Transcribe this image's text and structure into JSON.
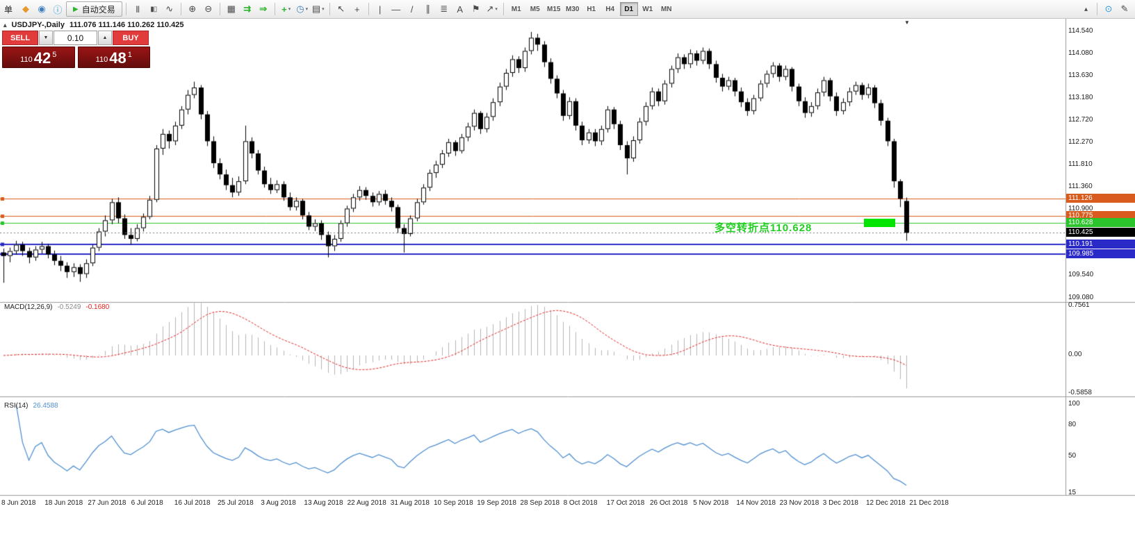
{
  "app": {
    "colors": {
      "buy_sell_red": "#e13b3b",
      "price_box_red": "#9a1515",
      "line_orange": "#d95c1e",
      "line_green": "#2cc42c",
      "line_blue": "#2a2ac8",
      "current_black": "#000000",
      "macd_histogram": "#b4b4b4",
      "macd_signal": "#e82020",
      "rsi_line": "#4f8fd0",
      "annotation_green": "#1fce1f",
      "highlight_green": "#00e400"
    }
  },
  "toolbar": {
    "menu_label": "单",
    "autotrading_label": "自动交易",
    "timeframes": [
      "M1",
      "M5",
      "M15",
      "M30",
      "H1",
      "H4",
      "D1",
      "W1",
      "MN"
    ],
    "active_timeframe": "D1",
    "icons": {
      "new_order": "◆",
      "market_watch": "◉",
      "info": "ⓘ",
      "play": "▶",
      "bars": "|||",
      "candles": "▮▯",
      "line_chart": "∿",
      "zoom_in": "⊕",
      "zoom_out": "⊖",
      "tile_windows": "▦",
      "auto_scroll": "⇉",
      "chart_shift": "⇒",
      "indicators": "+",
      "periods": "◷",
      "templates": "▤",
      "dropdown": "▾",
      "cursor": "↖",
      "crosshair": "+",
      "vertical_line": "|",
      "horizontal_line": "—",
      "trendline": "/",
      "channel": "∥",
      "fibonacci": "≣",
      "text": "A",
      "label": "⚑",
      "arrows": "↗",
      "collapse": "▴",
      "community": "⊙",
      "edit": "✎"
    }
  },
  "chart": {
    "collapse_arrow": "▴",
    "shift_marker": "▼",
    "symbol_title": "USDJPY-,Daily",
    "ohlc_text": "111.076 111.146 110.262 110.425",
    "trade_panel": {
      "sell_label": "SELL",
      "buy_label": "BUY",
      "volume": "0.10",
      "spin_down_icon": "▼",
      "spin_up_icon": "▲",
      "sell_price_small": "110",
      "sell_price_big": "42",
      "sell_price_sup": "5",
      "buy_price_small": "110",
      "buy_price_big": "48",
      "buy_price_sup": "1"
    },
    "annotation": {
      "text": "多空转折点110.628"
    }
  },
  "macd_panel": {
    "label": "MACD(12,26,9)",
    "value_main": "-0.5249",
    "value_signal": "-0.1680"
  },
  "rsi_panel": {
    "label": "RSI(14)",
    "value": "26.4588"
  },
  "chart_data": {
    "type": "candlestick",
    "symbol": "USDJPY",
    "timeframe": "Daily",
    "ohlc_display": {
      "open": 111.076,
      "high": 111.146,
      "low": 110.262,
      "close": 110.425
    },
    "y_axis": {
      "price_top": 114.71,
      "price_bottom": 109.02
    },
    "price_axis_labels": [
      "114.540",
      "114.080",
      "113.630",
      "113.180",
      "112.720",
      "112.270",
      "111.810",
      "111.360",
      "110.900",
      "109.540",
      "109.080"
    ],
    "price_lines": [
      {
        "price": 111.126,
        "label": "111.126",
        "color": "#d95c1e",
        "width": 1,
        "style": "solid"
      },
      {
        "price": 110.775,
        "label": "110.775",
        "color": "#d95c1e",
        "width": 1,
        "style": "solid"
      },
      {
        "price": 110.628,
        "label": "110.628",
        "color": "#2cc42c",
        "width": 1,
        "style": "solid"
      },
      {
        "price": 110.425,
        "label": "110.425",
        "color": "#777777",
        "chip": "#000000",
        "width": 1,
        "style": "dotted"
      },
      {
        "price": 110.191,
        "label": "110.191",
        "color": "#2a2ac8",
        "width": 2,
        "style": "solid"
      },
      {
        "price": 109.985,
        "label": "109.985",
        "color": "#2a2ac8",
        "width": 2,
        "style": "solid"
      }
    ],
    "date_labels": [
      "8 Jun 2018",
      "18 Jun 2018",
      "27 Jun 2018",
      "6 Jul 2018",
      "16 Jul 2018",
      "25 Jul 2018",
      "3 Aug 2018",
      "13 Aug 2018",
      "22 Aug 2018",
      "31 Aug 2018",
      "10 Sep 2018",
      "19 Sep 2018",
      "28 Sep 2018",
      "8 Oct 2018",
      "17 Oct 2018",
      "26 Oct 2018",
      "5 Nov 2018",
      "14 Nov 2018",
      "23 Nov 2018",
      "3 Dec 2018",
      "12 Dec 2018",
      "21 Dec 2018"
    ],
    "macd": {
      "label": "MACD(12,26,9)",
      "params": [
        12,
        26,
        9
      ],
      "main": -0.5249,
      "signal": -0.168,
      "axis_labels": [
        "0.7561",
        "0.00",
        "-0.5858"
      ],
      "axis_values": [
        0.7561,
        0,
        -0.5858
      ]
    },
    "rsi": {
      "label": "RSI(14)",
      "period": 14,
      "value": 26.4588,
      "axis_labels": [
        "100",
        "80",
        "50",
        "15"
      ],
      "axis_values": [
        100,
        80,
        50,
        15
      ]
    },
    "candles": [
      [
        110.02,
        110.1,
        109.4,
        109.95
      ],
      [
        109.95,
        110.12,
        109.82,
        110.05
      ],
      [
        110.05,
        110.26,
        109.98,
        110.18
      ],
      [
        110.18,
        110.24,
        109.95,
        110.05
      ],
      [
        110.05,
        110.12,
        109.8,
        109.92
      ],
      [
        109.92,
        110.15,
        109.85,
        110.08
      ],
      [
        110.08,
        110.24,
        110.0,
        110.15
      ],
      [
        110.15,
        110.2,
        109.9,
        109.98
      ],
      [
        109.98,
        110.06,
        109.76,
        109.85
      ],
      [
        109.85,
        109.95,
        109.64,
        109.75
      ],
      [
        109.75,
        109.82,
        109.5,
        109.62
      ],
      [
        109.62,
        109.8,
        109.52,
        109.72
      ],
      [
        109.72,
        109.78,
        109.42,
        109.58
      ],
      [
        109.58,
        109.88,
        109.5,
        109.8
      ],
      [
        109.8,
        110.18,
        109.74,
        110.12
      ],
      [
        110.12,
        110.52,
        110.05,
        110.45
      ],
      [
        110.45,
        110.78,
        110.35,
        110.68
      ],
      [
        110.68,
        111.12,
        110.6,
        111.05
      ],
      [
        111.05,
        111.15,
        110.62,
        110.72
      ],
      [
        110.72,
        110.8,
        110.3,
        110.38
      ],
      [
        110.38,
        110.52,
        110.18,
        110.3
      ],
      [
        110.3,
        110.6,
        110.25,
        110.52
      ],
      [
        110.52,
        110.82,
        110.45,
        110.75
      ],
      [
        110.75,
        111.18,
        110.7,
        111.1
      ],
      [
        111.1,
        112.22,
        111.05,
        112.15
      ],
      [
        112.15,
        112.55,
        112.02,
        112.45
      ],
      [
        112.45,
        112.52,
        112.15,
        112.3
      ],
      [
        112.3,
        112.7,
        112.22,
        112.62
      ],
      [
        112.62,
        113.02,
        112.55,
        112.95
      ],
      [
        112.95,
        113.35,
        112.85,
        113.25
      ],
      [
        113.25,
        113.52,
        113.18,
        113.4
      ],
      [
        113.4,
        113.45,
        112.75,
        112.85
      ],
      [
        112.85,
        112.92,
        112.2,
        112.3
      ],
      [
        112.3,
        112.4,
        111.75,
        111.85
      ],
      [
        111.85,
        111.95,
        111.52,
        111.62
      ],
      [
        111.62,
        111.72,
        111.3,
        111.4
      ],
      [
        111.4,
        111.55,
        111.15,
        111.25
      ],
      [
        111.25,
        111.58,
        111.18,
        111.48
      ],
      [
        111.48,
        112.62,
        111.42,
        112.3
      ],
      [
        112.3,
        112.38,
        111.95,
        112.05
      ],
      [
        112.05,
        112.12,
        111.62,
        111.7
      ],
      [
        111.7,
        111.78,
        111.35,
        111.42
      ],
      [
        111.42,
        111.55,
        111.22,
        111.3
      ],
      [
        111.3,
        111.5,
        111.24,
        111.42
      ],
      [
        111.42,
        111.48,
        111.08,
        111.15
      ],
      [
        111.15,
        111.25,
        110.88,
        110.95
      ],
      [
        110.95,
        111.15,
        110.88,
        111.08
      ],
      [
        111.08,
        111.12,
        110.7,
        110.78
      ],
      [
        110.78,
        110.85,
        110.48,
        110.55
      ],
      [
        110.55,
        110.7,
        110.46,
        110.62
      ],
      [
        110.62,
        110.68,
        110.28,
        110.38
      ],
      [
        110.38,
        110.45,
        109.92,
        110.15
      ],
      [
        110.15,
        110.38,
        110.05,
        110.3
      ],
      [
        110.3,
        110.68,
        110.24,
        110.62
      ],
      [
        110.62,
        110.98,
        110.55,
        110.92
      ],
      [
        110.92,
        111.22,
        110.85,
        111.15
      ],
      [
        111.15,
        111.38,
        111.08,
        111.3
      ],
      [
        111.3,
        111.36,
        111.1,
        111.18
      ],
      [
        111.18,
        111.25,
        110.96,
        111.05
      ],
      [
        111.05,
        111.28,
        110.98,
        111.22
      ],
      [
        111.22,
        111.3,
        111.0,
        111.08
      ],
      [
        111.08,
        111.15,
        110.86,
        110.95
      ],
      [
        110.95,
        111.0,
        110.42,
        110.52
      ],
      [
        110.52,
        110.6,
        110.02,
        110.4
      ],
      [
        110.4,
        110.78,
        110.35,
        110.72
      ],
      [
        110.72,
        111.12,
        110.66,
        111.05
      ],
      [
        111.05,
        111.42,
        111.0,
        111.35
      ],
      [
        111.35,
        111.72,
        111.28,
        111.65
      ],
      [
        111.65,
        111.9,
        111.55,
        111.82
      ],
      [
        111.82,
        112.12,
        111.75,
        112.05
      ],
      [
        112.05,
        112.35,
        111.98,
        112.28
      ],
      [
        112.28,
        112.32,
        112.0,
        112.1
      ],
      [
        112.1,
        112.45,
        112.05,
        112.38
      ],
      [
        112.38,
        112.68,
        112.3,
        112.6
      ],
      [
        112.6,
        112.95,
        112.52,
        112.88
      ],
      [
        112.88,
        112.92,
        112.45,
        112.55
      ],
      [
        112.55,
        112.88,
        112.48,
        112.8
      ],
      [
        112.8,
        113.18,
        112.72,
        113.1
      ],
      [
        113.1,
        113.5,
        113.02,
        113.42
      ],
      [
        113.42,
        113.78,
        113.35,
        113.7
      ],
      [
        113.7,
        114.06,
        113.62,
        113.98
      ],
      [
        113.98,
        114.04,
        113.7,
        113.8
      ],
      [
        113.8,
        114.22,
        113.72,
        114.15
      ],
      [
        114.15,
        114.54,
        114.08,
        114.42
      ],
      [
        114.42,
        114.5,
        114.15,
        114.28
      ],
      [
        114.28,
        114.35,
        113.82,
        113.92
      ],
      [
        113.92,
        114.0,
        113.48,
        113.58
      ],
      [
        113.58,
        113.65,
        113.18,
        113.28
      ],
      [
        113.28,
        113.35,
        112.72,
        112.82
      ],
      [
        112.82,
        113.2,
        112.75,
        113.12
      ],
      [
        113.12,
        113.18,
        112.52,
        112.62
      ],
      [
        112.62,
        112.7,
        112.22,
        112.32
      ],
      [
        112.32,
        112.55,
        112.25,
        112.48
      ],
      [
        112.48,
        112.55,
        112.2,
        112.3
      ],
      [
        112.3,
        112.62,
        112.22,
        112.55
      ],
      [
        112.55,
        113.02,
        112.48,
        112.95
      ],
      [
        112.95,
        113.0,
        112.55,
        112.65
      ],
      [
        112.65,
        112.72,
        112.12,
        112.22
      ],
      [
        112.22,
        112.3,
        111.62,
        111.95
      ],
      [
        111.95,
        112.4,
        111.88,
        112.32
      ],
      [
        112.32,
        112.78,
        112.25,
        112.7
      ],
      [
        112.7,
        113.1,
        112.62,
        113.02
      ],
      [
        113.02,
        113.4,
        112.95,
        113.32
      ],
      [
        113.32,
        113.38,
        113.02,
        113.12
      ],
      [
        113.12,
        113.55,
        113.05,
        113.48
      ],
      [
        113.48,
        113.85,
        113.4,
        113.78
      ],
      [
        113.78,
        114.1,
        113.7,
        114.02
      ],
      [
        114.02,
        114.08,
        113.78,
        113.88
      ],
      [
        113.88,
        114.18,
        113.8,
        114.1
      ],
      [
        114.1,
        114.16,
        113.85,
        113.95
      ],
      [
        113.95,
        114.22,
        113.88,
        114.15
      ],
      [
        114.15,
        114.2,
        113.78,
        113.88
      ],
      [
        113.88,
        113.95,
        113.5,
        113.6
      ],
      [
        113.6,
        113.68,
        113.32,
        113.42
      ],
      [
        113.42,
        113.62,
        113.35,
        113.55
      ],
      [
        113.55,
        113.6,
        113.22,
        113.32
      ],
      [
        113.32,
        113.4,
        113.0,
        113.1
      ],
      [
        113.1,
        113.18,
        112.82,
        112.92
      ],
      [
        112.92,
        113.25,
        112.85,
        113.18
      ],
      [
        113.18,
        113.55,
        113.12,
        113.48
      ],
      [
        113.48,
        113.75,
        113.4,
        113.68
      ],
      [
        113.68,
        113.92,
        113.6,
        113.85
      ],
      [
        113.85,
        113.9,
        113.52,
        113.62
      ],
      [
        113.62,
        113.85,
        113.55,
        113.78
      ],
      [
        113.78,
        113.82,
        113.32,
        113.42
      ],
      [
        113.42,
        113.48,
        113.02,
        113.12
      ],
      [
        113.12,
        113.2,
        112.78,
        112.88
      ],
      [
        112.88,
        113.1,
        112.8,
        113.02
      ],
      [
        113.02,
        113.38,
        112.95,
        113.3
      ],
      [
        113.3,
        113.62,
        113.22,
        113.55
      ],
      [
        113.55,
        113.6,
        113.12,
        113.22
      ],
      [
        113.22,
        113.3,
        112.82,
        112.92
      ],
      [
        112.92,
        113.18,
        112.85,
        113.1
      ],
      [
        113.1,
        113.4,
        113.02,
        113.32
      ],
      [
        113.32,
        113.52,
        113.25,
        113.45
      ],
      [
        113.45,
        113.5,
        113.15,
        113.25
      ],
      [
        113.25,
        113.48,
        113.18,
        113.4
      ],
      [
        113.4,
        113.45,
        112.98,
        113.08
      ],
      [
        113.08,
        113.15,
        112.62,
        112.72
      ],
      [
        112.72,
        112.78,
        112.2,
        112.3
      ],
      [
        112.3,
        112.35,
        111.35,
        111.48
      ],
      [
        111.48,
        111.52,
        110.95,
        111.12
      ],
      [
        111.076,
        111.146,
        110.262,
        110.425
      ]
    ]
  }
}
